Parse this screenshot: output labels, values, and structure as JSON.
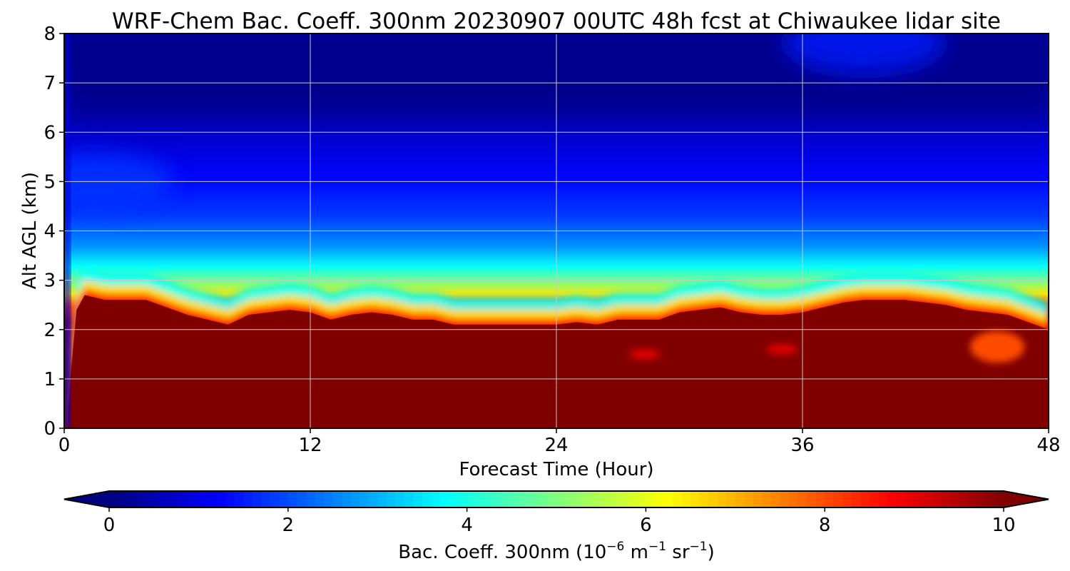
{
  "chart_data": {
    "type": "heatmap",
    "title": "WRF-Chem Bac. Coeff. 300nm  20230907 00UTC 48h fcst at Chiwaukee lidar site",
    "xlabel": "Forecast Time (Hour)",
    "ylabel": "Alt AGL (km)",
    "xlim": [
      0,
      48
    ],
    "ylim": [
      0,
      8
    ],
    "xticks": [
      0,
      12,
      24,
      36,
      48
    ],
    "yticks": [
      0,
      1,
      2,
      3,
      4,
      5,
      6,
      7,
      8
    ],
    "grid": true,
    "colormap": "jet",
    "colorbar": {
      "label_prefix": "Bac. Coeff. 300nm  (10",
      "label_exp1": "−6",
      "label_mid1": " m",
      "label_exp2": "−1",
      "label_mid2": " sr",
      "label_exp3": "−1",
      "label_suffix": ")",
      "ticks": [
        0,
        2,
        4,
        6,
        8,
        10
      ],
      "vmin": 0,
      "vmax": 10,
      "extend": "both",
      "orientation": "horizontal"
    },
    "aerosol_layer_top_km": {
      "hours": [
        0.3,
        0.6,
        1,
        2,
        4,
        6,
        7,
        8,
        9,
        10,
        11,
        12,
        13,
        14,
        15,
        16,
        17,
        18,
        19,
        20,
        21,
        22,
        23,
        24,
        25,
        26,
        27,
        28,
        29,
        30,
        31,
        32,
        33,
        34,
        35,
        36,
        37,
        38,
        39,
        40,
        41,
        42,
        43,
        44,
        45,
        46,
        47,
        48
      ],
      "values": [
        1.0,
        2.4,
        2.7,
        2.6,
        2.6,
        2.3,
        2.2,
        2.1,
        2.3,
        2.35,
        2.4,
        2.35,
        2.2,
        2.3,
        2.35,
        2.3,
        2.2,
        2.2,
        2.1,
        2.1,
        2.1,
        2.1,
        2.1,
        2.1,
        2.15,
        2.1,
        2.2,
        2.2,
        2.2,
        2.35,
        2.4,
        2.45,
        2.35,
        2.3,
        2.3,
        2.35,
        2.45,
        2.55,
        2.6,
        2.6,
        2.6,
        2.55,
        2.5,
        2.4,
        2.35,
        2.3,
        2.15,
        2.0
      ]
    },
    "elevated_pockets": [
      {
        "hour": 28.3,
        "alt_km": 1.5,
        "value": 9
      },
      {
        "hour": 35.0,
        "alt_km": 1.6,
        "value": 9
      },
      {
        "hour": 45.5,
        "alt_km": 1.65,
        "value": 8
      }
    ],
    "upper_features": [
      {
        "hour": 39.0,
        "alt_km": 7.8,
        "value": 1.5
      },
      {
        "hour": 1.5,
        "alt_km": 5.0,
        "value": 1.8
      }
    ]
  }
}
